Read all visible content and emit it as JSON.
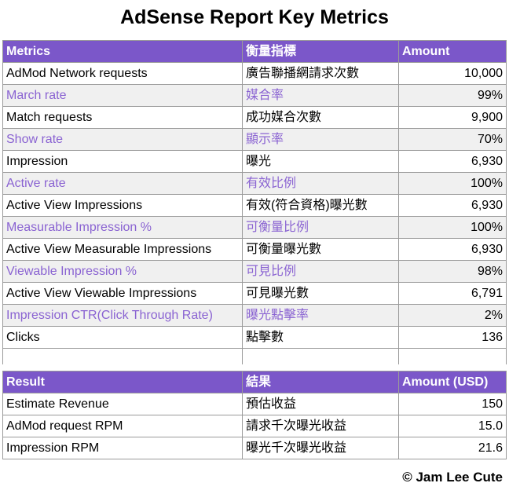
{
  "title": "AdSense Report Key Metrics",
  "metrics_table": {
    "headers": [
      "Metrics",
      "衡量指標",
      "Amount"
    ],
    "rows": [
      {
        "en": "AdMod Network requests",
        "zh": "廣告聯播網請求次數",
        "amount": "10,000",
        "highlight": false
      },
      {
        "en": "March rate",
        "zh": "媒合率",
        "amount": "99%",
        "highlight": true
      },
      {
        "en": "Match requests",
        "zh": "成功媒合次數",
        "amount": "9,900",
        "highlight": false
      },
      {
        "en": "Show rate",
        "zh": "顯示率",
        "amount": "70%",
        "highlight": true
      },
      {
        "en": "Impression",
        "zh": "曝光",
        "amount": "6,930",
        "highlight": false
      },
      {
        "en": "Active rate",
        "zh": "有效比例",
        "amount": "100%",
        "highlight": true
      },
      {
        "en": "Active View Impressions",
        "zh": "有效(符合資格)曝光數",
        "amount": "6,930",
        "highlight": false
      },
      {
        "en": "Measurable Impression %",
        "zh": "可衡量比例",
        "amount": "100%",
        "highlight": true
      },
      {
        "en": "Active View Measurable Impressions",
        "zh": "可衡量曝光數",
        "amount": "6,930",
        "highlight": false
      },
      {
        "en": "Viewable Impression %",
        "zh": "可見比例",
        "amount": "98%",
        "highlight": true
      },
      {
        "en": "Active View Viewable Impressions",
        "zh": "可見曝光數",
        "amount": "6,791",
        "highlight": false
      },
      {
        "en": "Impression CTR(Click Through Rate)",
        "zh": "曝光點擊率",
        "amount": "2%",
        "highlight": true
      },
      {
        "en": "Clicks",
        "zh": "點擊數",
        "amount": "136",
        "highlight": false
      }
    ]
  },
  "result_table": {
    "headers": [
      "Result",
      "結果",
      "Amount (USD)"
    ],
    "rows": [
      {
        "en": "Estimate Revenue",
        "zh": "預估收益",
        "amount": "150"
      },
      {
        "en": "AdMod request RPM",
        "zh": "請求千次曝光收益",
        "amount": "15.0"
      },
      {
        "en": "Impression RPM",
        "zh": "曝光千次曝光收益",
        "amount": "21.6"
      }
    ]
  },
  "footer": "© Jam Lee Cute",
  "colors": {
    "header_bg": "#7b57c9",
    "highlight_text": "#8a63d2",
    "highlight_bg": "#f0f0f0"
  }
}
